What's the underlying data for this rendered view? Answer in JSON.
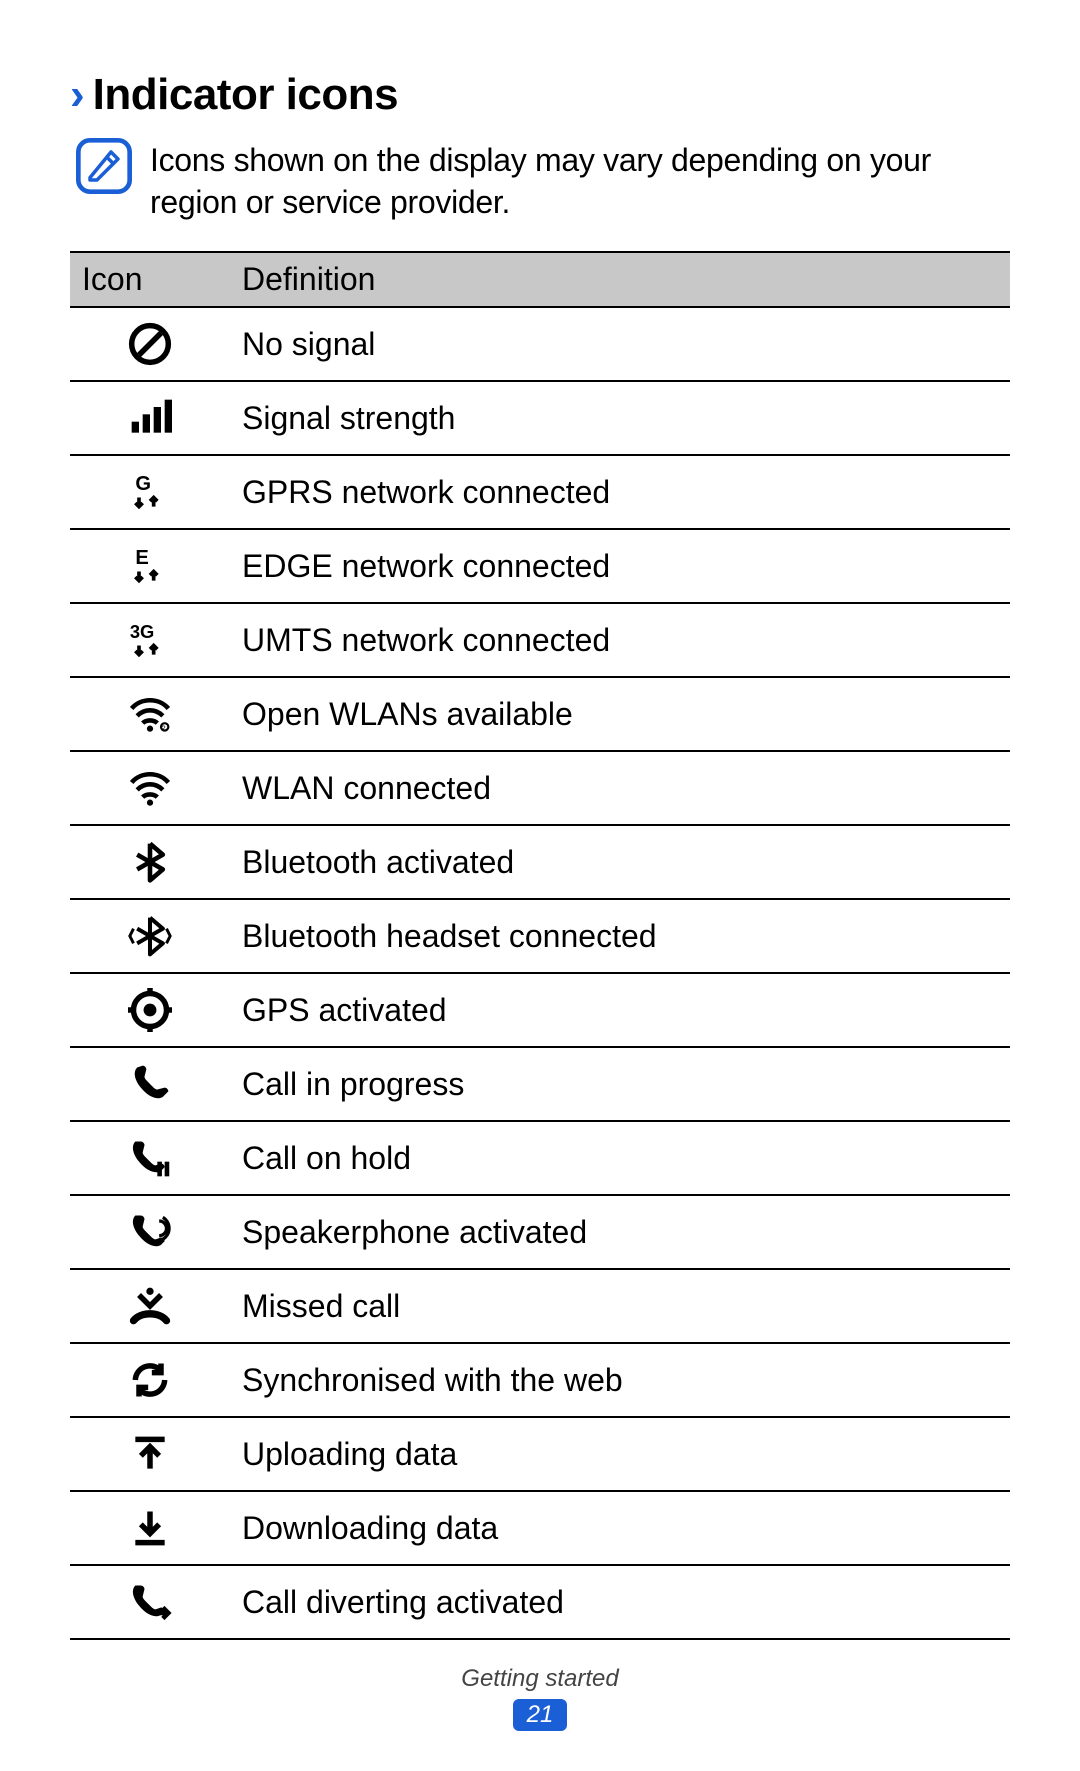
{
  "heading": {
    "chevron": "›",
    "title": "Indicator icons"
  },
  "note": {
    "text": "Icons shown on the display may vary depending on your region or service provider."
  },
  "table": {
    "header_icon": "Icon",
    "header_def": "Definition",
    "rows": [
      {
        "icon": "no-signal",
        "def": "No signal"
      },
      {
        "icon": "signal-strength",
        "def": "Signal strength"
      },
      {
        "icon": "gprs",
        "def": "GPRS network connected"
      },
      {
        "icon": "edge",
        "def": "EDGE network connected"
      },
      {
        "icon": "umts",
        "def": "UMTS network connected"
      },
      {
        "icon": "wlan-open",
        "def": "Open WLANs available"
      },
      {
        "icon": "wlan",
        "def": "WLAN connected"
      },
      {
        "icon": "bluetooth",
        "def": "Bluetooth activated"
      },
      {
        "icon": "bt-headset",
        "def": "Bluetooth headset connected"
      },
      {
        "icon": "gps",
        "def": "GPS activated"
      },
      {
        "icon": "call",
        "def": "Call in progress"
      },
      {
        "icon": "call-hold",
        "def": "Call on hold"
      },
      {
        "icon": "speakerphone",
        "def": "Speakerphone activated"
      },
      {
        "icon": "missed-call",
        "def": "Missed call"
      },
      {
        "icon": "sync",
        "def": "Synchronised with the web"
      },
      {
        "icon": "upload",
        "def": "Uploading data"
      },
      {
        "icon": "download",
        "def": "Downloading data"
      },
      {
        "icon": "call-divert",
        "def": "Call diverting activated"
      }
    ]
  },
  "footer": {
    "section": "Getting started",
    "page": "21"
  },
  "colors": {
    "accent": "#1a5fd6",
    "header_bg": "#c8c8c8",
    "border": "#000000",
    "text": "#000000",
    "footer_text": "#444444",
    "bg": "#ffffff"
  },
  "typography": {
    "heading_fontsize_pt": 33,
    "body_fontsize_pt": 24,
    "footer_fontsize_pt": 18
  }
}
